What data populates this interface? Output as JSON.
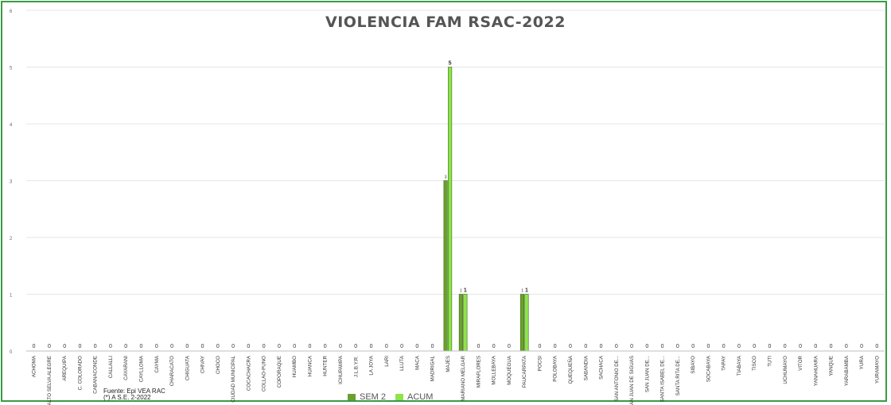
{
  "chart_data": {
    "type": "bar",
    "title": "VIOLENCIA FAM RSAC-2022",
    "xlabel": "",
    "ylabel": "",
    "ylim": [
      0,
      6
    ],
    "yticks": [
      "0",
      "1",
      "2",
      "3",
      "4",
      "5",
      "6"
    ],
    "grid": true,
    "legend_position": "bottom",
    "categories": [
      "ACHOMA",
      "ALTO SELVA ALEGRE",
      "AREQUIPA",
      "C. COLORADO",
      "CABANACONDE",
      "CALLALLI",
      "CAYARANI",
      "CAYLLOMA",
      "CAYMA",
      "CHARACATO",
      "CHIGUATA",
      "CHIVAY",
      "CHOCO",
      "CIUDAD MUNICIPAL",
      "COCACHACRA",
      "COLLAO-PUNO",
      "COPORAQUE",
      "HUAMBO",
      "HUANCA",
      "HUNTER",
      "ICHUPAMPA",
      "J.L.B.Y.R.",
      "LA JOYA",
      "LARI",
      "LLUTA",
      "MACA",
      "MADRIGAL",
      "MAJES",
      "MARIANO MELGAR",
      "MIRAFLORES",
      "MOLLEBAYA",
      "MOQUEGUA",
      "PAUCARPATA",
      "POCSI",
      "POLOBAYA",
      "QUEQUEÑA",
      "SABANDIA",
      "SACHACA",
      "SAN ANTONIO DE...",
      "SAN JUAN DE SIGUAS",
      "SAN JUAN DE...",
      "SANTA ISABEL DE...",
      "SANTA RITA DE...",
      "SIBAYO",
      "SOCABAYA",
      "TAPAY",
      "TIABAYA",
      "TISCO",
      "TUTI",
      "UCHUMAYO",
      "VITOR",
      "YANAHUARA",
      "YANQUE",
      "YARABAMBA",
      "YURA",
      "YURAMAYO"
    ],
    "series": [
      {
        "name": "SEM 2",
        "color": "#6aa12e",
        "values": [
          0,
          0,
          0,
          0,
          0,
          0,
          0,
          0,
          0,
          0,
          0,
          0,
          0,
          0,
          0,
          0,
          0,
          0,
          0,
          0,
          0,
          0,
          0,
          0,
          0,
          0,
          0,
          3,
          1,
          0,
          0,
          0,
          1,
          0,
          0,
          0,
          0,
          0,
          0,
          0,
          0,
          0,
          0,
          0,
          0,
          0,
          0,
          0,
          0,
          0,
          0,
          0,
          0,
          0,
          0,
          0
        ]
      },
      {
        "name": "ACUM",
        "color": "#8ee34a",
        "values": [
          0,
          0,
          0,
          0,
          0,
          0,
          0,
          0,
          0,
          0,
          0,
          0,
          0,
          0,
          0,
          0,
          0,
          0,
          0,
          0,
          0,
          0,
          0,
          0,
          0,
          0,
          0,
          5,
          1,
          0,
          0,
          0,
          1,
          0,
          0,
          0,
          0,
          0,
          0,
          0,
          0,
          0,
          0,
          0,
          0,
          0,
          0,
          0,
          0,
          0,
          0,
          0,
          0,
          0,
          0,
          0
        ]
      }
    ],
    "annotations": [
      "Fuente: Epi VEA RAC",
      "(*) A S.E. 2-2022"
    ]
  },
  "colors": {
    "frame": "#3a9a46",
    "grid": "#e6e6e6",
    "title": "#555555"
  }
}
